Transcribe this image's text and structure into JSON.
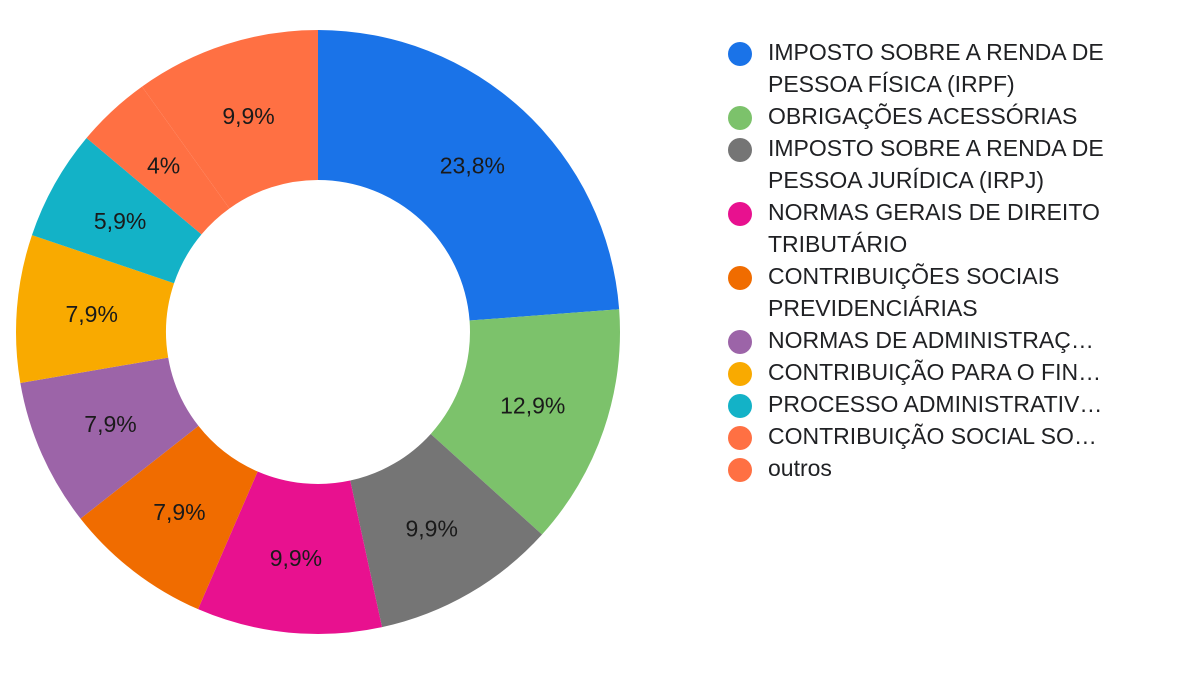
{
  "chart_data": {
    "type": "pie",
    "donut": true,
    "slices": [
      {
        "label": "IMPOSTO SOBRE A RENDA DE PESSOA FÍSICA (IRPF)",
        "value": 23.8,
        "display": "23,8%",
        "color": "#1a73e8"
      },
      {
        "label": "OBRIGAÇÕES ACESSÓRIAS",
        "value": 12.9,
        "display": "12,9%",
        "color": "#7cc26b"
      },
      {
        "label": "IMPOSTO SOBRE A RENDA DE PESSOA JURÍDICA (IRPJ)",
        "value": 9.9,
        "display": "9,9%",
        "color": "#757575"
      },
      {
        "label": "NORMAS GERAIS DE DIREITO TRIBUTÁRIO",
        "value": 9.9,
        "display": "9,9%",
        "color": "#e8118f"
      },
      {
        "label": "CONTRIBUIÇÕES SOCIAIS PREVIDENCIÁRIAS",
        "value": 7.9,
        "display": "7,9%",
        "color": "#f06c00"
      },
      {
        "label": "NORMAS DE ADMINISTRAÇ…",
        "value": 7.9,
        "display": "7,9%",
        "color": "#9c64a8"
      },
      {
        "label": "CONTRIBUIÇÃO PARA O FIN…",
        "value": 7.9,
        "display": "7,9%",
        "color": "#f9aa00"
      },
      {
        "label": "PROCESSO ADMINISTRATIV…",
        "value": 5.9,
        "display": "5,9%",
        "color": "#13b2c7"
      },
      {
        "label": "CONTRIBUIÇÃO SOCIAL SO…",
        "value": 4.0,
        "display": "4%",
        "color": "#ff7043"
      },
      {
        "label": "outros",
        "value": 9.9,
        "display": "9,9%",
        "color": "#ff7043"
      }
    ],
    "legend_position": "right"
  }
}
